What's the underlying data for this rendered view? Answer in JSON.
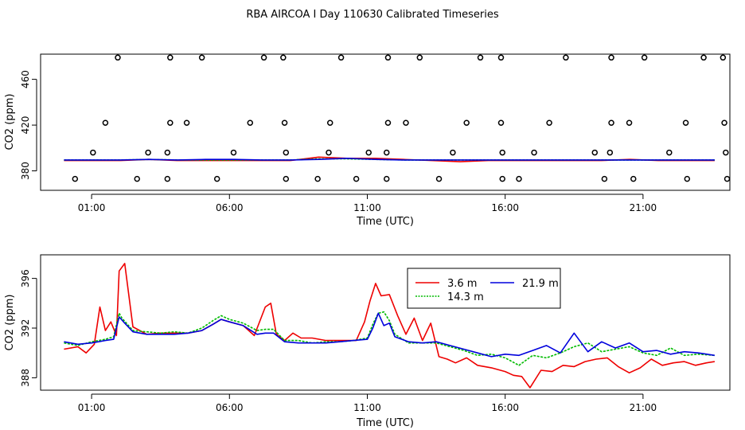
{
  "figure_title": "RBA AIRCOA I  Day 110630  Calibrated Timeseries",
  "chart_data": [
    {
      "type": "scatter",
      "title": "",
      "xlabel": "Time (UTC)",
      "ylabel": "CO2 (ppm)",
      "x_range": [
        -0.85,
        24.15
      ],
      "ylim": [
        363,
        482
      ],
      "x_ticks": [
        1,
        6,
        11,
        16,
        21
      ],
      "x_tick_labels": [
        "01:00",
        "06:00",
        "11:00",
        "16:00",
        "21:00"
      ],
      "y_ticks": [
        380,
        420,
        460
      ],
      "y_tick_labels": [
        "380",
        "420",
        "460"
      ],
      "calibration_points": {
        "marker": "open circle",
        "y_levels": [
          373,
          396,
          422,
          479
        ],
        "x": [
          [
            0.4,
            2.65,
            3.75,
            5.55,
            8.05,
            9.2,
            10.6,
            11.7,
            13.6,
            15.9,
            16.5,
            19.6,
            20.65,
            22.6,
            24.05
          ],
          [
            1.05,
            3.05,
            3.75,
            6.15,
            8.05,
            9.6,
            11.05,
            11.7,
            14.1,
            15.9,
            17.05,
            19.25,
            19.8,
            21.95,
            24
          ],
          [
            1.5,
            3.85,
            4.45,
            6.75,
            8.0,
            9.65,
            11.75,
            12.4,
            14.6,
            15.85,
            17.6,
            19.85,
            20.5,
            22.55,
            23.95
          ],
          [
            1.95,
            3.85,
            5.0,
            7.25,
            7.95,
            10.05,
            11.75,
            12.9,
            15.1,
            15.85,
            18.2,
            19.85,
            21.05,
            23.2,
            23.9
          ]
        ]
      },
      "series": [
        {
          "name": "3.6 m",
          "color": "#ee0000",
          "x_start": 0,
          "x_end": 23.6,
          "values": [
            389,
            389,
            389,
            390,
            389,
            389,
            389,
            389,
            389,
            392,
            391,
            391,
            390,
            389,
            388,
            389,
            389,
            389,
            389,
            389,
            390,
            389,
            389,
            389
          ]
        },
        {
          "name": "14.3 m",
          "color": "#00bb00",
          "x_start": 0,
          "x_end": 23.6,
          "values": [
            389.5,
            389.5,
            389.5,
            390,
            389.5,
            389.5,
            389.5,
            389.5,
            389.5,
            390.5,
            390.5,
            390,
            389.5,
            389.5,
            389.5,
            389.5,
            389.5,
            389.5,
            389.5,
            389.5,
            389.5,
            389.5,
            389.5,
            389.5
          ]
        },
        {
          "name": "21.9 m",
          "color": "#0000dd",
          "x_start": 0,
          "x_end": 23.6,
          "values": [
            389.5,
            389.5,
            389.5,
            390,
            389.5,
            390,
            390,
            389.5,
            389.5,
            390,
            391,
            390,
            389.5,
            389.5,
            389.5,
            389.5,
            389.5,
            389.5,
            389.5,
            389.5,
            389.5,
            389.5,
            389.5,
            389.5
          ]
        }
      ]
    },
    {
      "type": "line",
      "title": "",
      "xlabel": "Time (UTC)",
      "ylabel": "CO2 (ppm)",
      "x_range": [
        -0.85,
        24.15
      ],
      "ylim": [
        387,
        397.9
      ],
      "x_ticks": [
        1,
        6,
        11,
        16,
        21
      ],
      "x_tick_labels": [
        "01:00",
        "06:00",
        "11:00",
        "16:00",
        "21:00"
      ],
      "y_ticks": [
        388,
        392,
        396
      ],
      "y_tick_labels": [
        "388",
        "392",
        "396"
      ],
      "legend": {
        "position": "top-center",
        "columns": 2
      },
      "series": [
        {
          "name": "3.6 m",
          "color": "#ee0000",
          "x": [
            0,
            0.5,
            0.8,
            1.1,
            1.3,
            1.5,
            1.7,
            1.9,
            2.0,
            2.2,
            2.5,
            3.0,
            3.5,
            4.0,
            4.5,
            5.0,
            5.4,
            5.7,
            6.0,
            6.5,
            6.9,
            7.3,
            7.5,
            7.7,
            8.0,
            8.3,
            8.6,
            9.0,
            9.5,
            10.0,
            10.3,
            10.6,
            10.9,
            11.1,
            11.3,
            11.5,
            11.8,
            12.1,
            12.4,
            12.7,
            13.0,
            13.3,
            13.6,
            13.9,
            14.2,
            14.6,
            15.0,
            15.5,
            16.0,
            16.3,
            16.6,
            16.9,
            17.3,
            17.7,
            18.1,
            18.5,
            18.9,
            19.3,
            19.7,
            20.1,
            20.5,
            20.9,
            21.3,
            21.7,
            22.1,
            22.5,
            22.9,
            23.3,
            23.6
          ],
          "values": [
            390.3,
            390.5,
            390.0,
            390.7,
            393.7,
            391.8,
            392.5,
            391.4,
            396.6,
            397.2,
            392.1,
            391.5,
            391.6,
            391.6,
            391.6,
            391.8,
            392.3,
            392.7,
            392.5,
            392.2,
            391.4,
            393.7,
            394.0,
            391.5,
            391.0,
            391.6,
            391.2,
            391.2,
            391.0,
            391.0,
            391.0,
            391.0,
            392.5,
            394.2,
            395.6,
            394.6,
            394.7,
            393.0,
            391.5,
            392.8,
            391.0,
            392.4,
            389.7,
            389.5,
            389.2,
            389.6,
            389.0,
            388.8,
            388.5,
            388.2,
            388.1,
            387.2,
            388.6,
            388.5,
            389.0,
            388.9,
            389.3,
            389.5,
            389.6,
            388.9,
            388.4,
            388.8,
            389.5,
            389.0,
            389.2,
            389.3,
            389.0,
            389.2,
            389.3
          ]
        },
        {
          "name": "14.3 m",
          "color": "#00bb00",
          "x": [
            0,
            0.5,
            1.0,
            1.5,
            1.8,
            2.0,
            2.1,
            2.5,
            3.0,
            3.5,
            4.0,
            4.5,
            5.0,
            5.4,
            5.7,
            6.0,
            6.5,
            7.0,
            7.3,
            7.6,
            8.0,
            8.5,
            9.0,
            9.5,
            10.0,
            10.5,
            11.0,
            11.2,
            11.4,
            11.6,
            11.8,
            12.0,
            12.5,
            13.0,
            13.5,
            14.0,
            14.5,
            15.0,
            15.5,
            16.0,
            16.5,
            17.0,
            17.5,
            18.0,
            18.5,
            19.0,
            19.5,
            20.0,
            20.5,
            21.0,
            21.5,
            22.0,
            22.5,
            23.0,
            23.6
          ],
          "values": [
            390.8,
            390.6,
            390.9,
            391.1,
            391.3,
            393.2,
            392.8,
            391.8,
            391.7,
            391.6,
            391.7,
            391.6,
            392.0,
            392.6,
            393.0,
            392.7,
            392.4,
            391.8,
            391.9,
            391.9,
            391.0,
            391.0,
            390.8,
            390.9,
            390.9,
            391.0,
            391.2,
            392.3,
            393.2,
            393.3,
            392.6,
            391.5,
            390.8,
            390.8,
            390.8,
            390.5,
            390.2,
            389.8,
            389.9,
            389.6,
            389.0,
            389.8,
            389.6,
            390.0,
            390.5,
            390.8,
            390.1,
            390.3,
            390.5,
            390.0,
            389.8,
            390.4,
            389.8,
            389.9,
            389.8
          ]
        },
        {
          "name": "21.9 m",
          "color": "#0000dd",
          "x": [
            0,
            0.5,
            1.0,
            1.5,
            1.8,
            2.0,
            2.2,
            2.5,
            3.0,
            3.5,
            4.0,
            4.5,
            5.0,
            5.4,
            5.7,
            6.0,
            6.5,
            7.0,
            7.3,
            7.6,
            8.0,
            8.5,
            9.0,
            9.5,
            10.0,
            10.5,
            11.0,
            11.2,
            11.4,
            11.6,
            11.8,
            12.0,
            12.5,
            13.0,
            13.5,
            14.0,
            14.5,
            15.0,
            15.5,
            16.0,
            16.5,
            17.0,
            17.5,
            18.0,
            18.5,
            19.0,
            19.5,
            20.0,
            20.5,
            21.0,
            21.5,
            22.0,
            22.5,
            23.0,
            23.6
          ],
          "values": [
            390.9,
            390.7,
            390.8,
            391.0,
            391.1,
            392.9,
            392.4,
            391.7,
            391.5,
            391.5,
            391.5,
            391.6,
            391.8,
            392.3,
            392.7,
            392.5,
            392.2,
            391.5,
            391.6,
            391.6,
            390.9,
            390.8,
            390.8,
            390.8,
            390.9,
            391.0,
            391.1,
            392.0,
            393.2,
            392.2,
            392.4,
            391.3,
            390.9,
            390.8,
            390.9,
            390.6,
            390.3,
            390.0,
            389.7,
            389.9,
            389.8,
            390.2,
            390.6,
            390.0,
            391.6,
            390.1,
            390.9,
            390.4,
            390.8,
            390.1,
            390.2,
            389.9,
            390.1,
            390.0,
            389.8
          ]
        }
      ]
    }
  ]
}
